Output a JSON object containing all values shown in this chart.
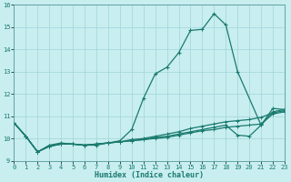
{
  "xlabel": "Humidex (Indice chaleur)",
  "bg_color": "#c8eef0",
  "line_color": "#1a7a6e",
  "grid_color": "#a0d4d8",
  "x_values": [
    0,
    1,
    2,
    3,
    4,
    5,
    6,
    7,
    8,
    9,
    10,
    11,
    12,
    13,
    14,
    15,
    16,
    17,
    18,
    19,
    20,
    21,
    22,
    23
  ],
  "series1": [
    10.7,
    10.1,
    9.4,
    9.7,
    9.8,
    9.75,
    9.7,
    9.7,
    9.8,
    9.9,
    10.4,
    11.8,
    12.9,
    13.2,
    13.85,
    14.85,
    14.9,
    15.6,
    15.1,
    13.0,
    null,
    10.6,
    11.35,
    11.3
  ],
  "series2": [
    10.7,
    10.1,
    9.4,
    9.65,
    9.75,
    9.75,
    9.7,
    9.75,
    9.8,
    9.85,
    9.95,
    10.0,
    10.1,
    10.2,
    10.3,
    10.45,
    10.55,
    10.65,
    10.75,
    10.8,
    10.85,
    10.95,
    11.15,
    11.25
  ],
  "series3": [
    10.7,
    10.1,
    9.4,
    9.65,
    9.75,
    9.75,
    9.7,
    9.75,
    9.8,
    9.85,
    9.9,
    9.95,
    10.05,
    10.1,
    10.2,
    10.3,
    10.4,
    10.5,
    10.6,
    10.15,
    10.1,
    10.6,
    11.2,
    11.3
  ],
  "series4": [
    10.7,
    10.1,
    9.4,
    9.65,
    9.75,
    9.75,
    9.7,
    9.75,
    9.8,
    9.85,
    9.9,
    9.95,
    10.0,
    10.05,
    10.15,
    10.25,
    10.35,
    10.4,
    10.5,
    10.55,
    10.6,
    10.65,
    11.1,
    11.2
  ],
  "ylim": [
    9.0,
    16.0
  ],
  "xlim": [
    0,
    23
  ],
  "yticks": [
    9,
    10,
    11,
    12,
    13,
    14,
    15,
    16
  ],
  "xticks": [
    0,
    1,
    2,
    3,
    4,
    5,
    6,
    7,
    8,
    9,
    10,
    11,
    12,
    13,
    14,
    15,
    16,
    17,
    18,
    19,
    20,
    21,
    22,
    23
  ]
}
